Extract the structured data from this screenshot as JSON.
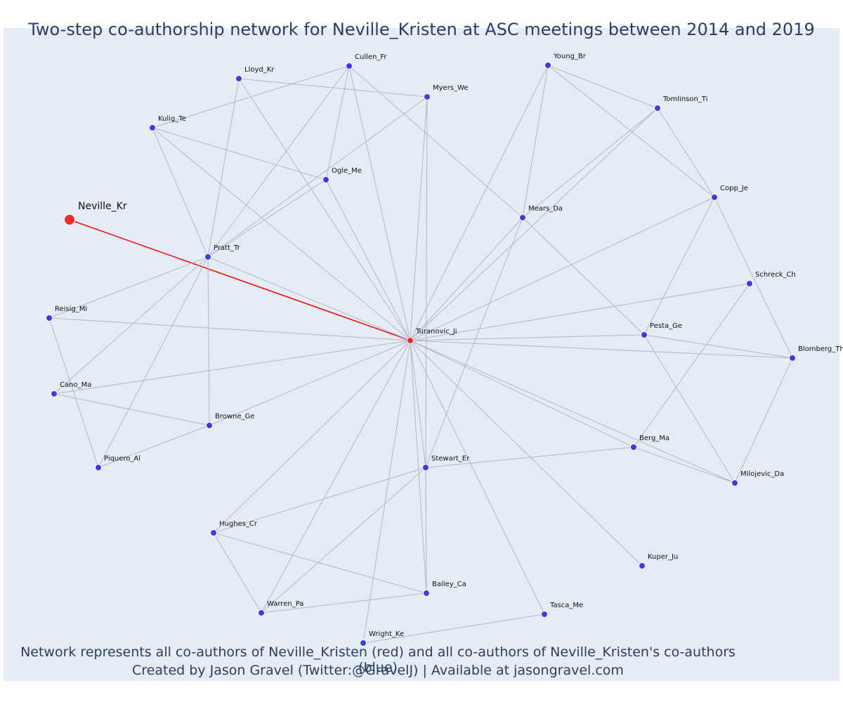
{
  "title": "Two-step co-authorship network for Neville_Kristen at ASC meetings between 2014 and 2019",
  "caption": {
    "line1": "Network represents all co-authors of Neville_Kristen (red) and all co-authors of Neville_Kristen's co-authors (blue)",
    "line2": "Created by Jason Gravel (Twitter:@GravelJ) | Available at jasongravel.com"
  },
  "colors": {
    "background": "#e5ecf6",
    "edge": "#b4b6c8",
    "focus_edge": "#ee1111",
    "coauthor_node": "#ee2a2a",
    "second_step_node": "#3b3be8",
    "text": "#2a3f5f"
  },
  "nodes": [
    {
      "id": "Neville_Kr",
      "group": "focus"
    },
    {
      "id": "Turanovic_Ji",
      "group": "coauthor"
    },
    {
      "id": "Lloyd_Kr",
      "group": "second"
    },
    {
      "id": "Cullen_Fr",
      "group": "second"
    },
    {
      "id": "Myers_We",
      "group": "second"
    },
    {
      "id": "Kulig_Te",
      "group": "second"
    },
    {
      "id": "Ogle_Me",
      "group": "second"
    },
    {
      "id": "Pratt_Tr",
      "group": "second"
    },
    {
      "id": "Young_Br",
      "group": "second"
    },
    {
      "id": "Tomlinson_Ti",
      "group": "second"
    },
    {
      "id": "Copp_Je",
      "group": "second"
    },
    {
      "id": "Mears_Da",
      "group": "second"
    },
    {
      "id": "Schreck_Ch",
      "group": "second"
    },
    {
      "id": "Pesta_Ge",
      "group": "second"
    },
    {
      "id": "Blomberg_Th",
      "group": "second"
    },
    {
      "id": "Reisig_Mi",
      "group": "second"
    },
    {
      "id": "Cano_Ma",
      "group": "second"
    },
    {
      "id": "Browne_Ge",
      "group": "second"
    },
    {
      "id": "Piquero_Al",
      "group": "second"
    },
    {
      "id": "Berg_Ma",
      "group": "second"
    },
    {
      "id": "Stewart_Er",
      "group": "second"
    },
    {
      "id": "Milojevic_Da",
      "group": "second"
    },
    {
      "id": "Hughes_Cr",
      "group": "second"
    },
    {
      "id": "Kuper_Ju",
      "group": "second"
    },
    {
      "id": "Bailey_Ca",
      "group": "second"
    },
    {
      "id": "Warren_Pa",
      "group": "second"
    },
    {
      "id": "Tasca_Me",
      "group": "second"
    },
    {
      "id": "Wright_Ke",
      "group": "second"
    }
  ],
  "edges": [
    [
      "Neville_Kr",
      "Turanovic_Ji"
    ],
    [
      "Turanovic_Ji",
      "Lloyd_Kr"
    ],
    [
      "Turanovic_Ji",
      "Cullen_Fr"
    ],
    [
      "Turanovic_Ji",
      "Myers_We"
    ],
    [
      "Turanovic_Ji",
      "Kulig_Te"
    ],
    [
      "Turanovic_Ji",
      "Ogle_Me"
    ],
    [
      "Turanovic_Ji",
      "Pratt_Tr"
    ],
    [
      "Turanovic_Ji",
      "Young_Br"
    ],
    [
      "Turanovic_Ji",
      "Tomlinson_Ti"
    ],
    [
      "Turanovic_Ji",
      "Copp_Je"
    ],
    [
      "Turanovic_Ji",
      "Mears_Da"
    ],
    [
      "Turanovic_Ji",
      "Schreck_Ch"
    ],
    [
      "Turanovic_Ji",
      "Pesta_Ge"
    ],
    [
      "Turanovic_Ji",
      "Blomberg_Th"
    ],
    [
      "Turanovic_Ji",
      "Reisig_Mi"
    ],
    [
      "Turanovic_Ji",
      "Cano_Ma"
    ],
    [
      "Turanovic_Ji",
      "Browne_Ge"
    ],
    [
      "Turanovic_Ji",
      "Berg_Ma"
    ],
    [
      "Turanovic_Ji",
      "Stewart_Er"
    ],
    [
      "Turanovic_Ji",
      "Milojevic_Da"
    ],
    [
      "Turanovic_Ji",
      "Hughes_Cr"
    ],
    [
      "Turanovic_Ji",
      "Kuper_Ju"
    ],
    [
      "Turanovic_Ji",
      "Bailey_Ca"
    ],
    [
      "Turanovic_Ji",
      "Warren_Pa"
    ],
    [
      "Turanovic_Ji",
      "Tasca_Me"
    ],
    [
      "Turanovic_Ji",
      "Wright_Ke"
    ],
    [
      "Lloyd_Kr",
      "Myers_We"
    ],
    [
      "Lloyd_Kr",
      "Pratt_Tr"
    ],
    [
      "Cullen_Fr",
      "Kulig_Te"
    ],
    [
      "Cullen_Fr",
      "Pratt_Tr"
    ],
    [
      "Cullen_Fr",
      "Ogle_Me"
    ],
    [
      "Cullen_Fr",
      "Mears_Da"
    ],
    [
      "Myers_We",
      "Pratt_Tr"
    ],
    [
      "Myers_We",
      "Stewart_Er"
    ],
    [
      "Kulig_Te",
      "Ogle_Me"
    ],
    [
      "Kulig_Te",
      "Pratt_Tr"
    ],
    [
      "Ogle_Me",
      "Pratt_Tr"
    ],
    [
      "Pratt_Tr",
      "Reisig_Mi"
    ],
    [
      "Pratt_Tr",
      "Cano_Ma"
    ],
    [
      "Pratt_Tr",
      "Browne_Ge"
    ],
    [
      "Pratt_Tr",
      "Piquero_Al"
    ],
    [
      "Young_Br",
      "Tomlinson_Ti"
    ],
    [
      "Young_Br",
      "Copp_Je"
    ],
    [
      "Young_Br",
      "Mears_Da"
    ],
    [
      "Tomlinson_Ti",
      "Copp_Je"
    ],
    [
      "Tomlinson_Ti",
      "Mears_Da"
    ],
    [
      "Copp_Je",
      "Pesta_Ge"
    ],
    [
      "Copp_Je",
      "Blomberg_Th"
    ],
    [
      "Mears_Da",
      "Pesta_Ge"
    ],
    [
      "Mears_Da",
      "Stewart_Er"
    ],
    [
      "Schreck_Ch",
      "Berg_Ma"
    ],
    [
      "Pesta_Ge",
      "Blomberg_Th"
    ],
    [
      "Pesta_Ge",
      "Milojevic_Da"
    ],
    [
      "Blomberg_Th",
      "Milojevic_Da"
    ],
    [
      "Reisig_Mi",
      "Piquero_Al"
    ],
    [
      "Cano_Ma",
      "Browne_Ge"
    ],
    [
      "Browne_Ge",
      "Piquero_Al"
    ],
    [
      "Berg_Ma",
      "Stewart_Er"
    ],
    [
      "Berg_Ma",
      "Milojevic_Da"
    ],
    [
      "Stewart_Er",
      "Hughes_Cr"
    ],
    [
      "Stewart_Er",
      "Bailey_Ca"
    ],
    [
      "Stewart_Er",
      "Warren_Pa"
    ],
    [
      "Hughes_Cr",
      "Bailey_Ca"
    ],
    [
      "Hughes_Cr",
      "Warren_Pa"
    ],
    [
      "Bailey_Ca",
      "Warren_Pa"
    ],
    [
      "Tasca_Me",
      "Wright_Ke"
    ]
  ]
}
